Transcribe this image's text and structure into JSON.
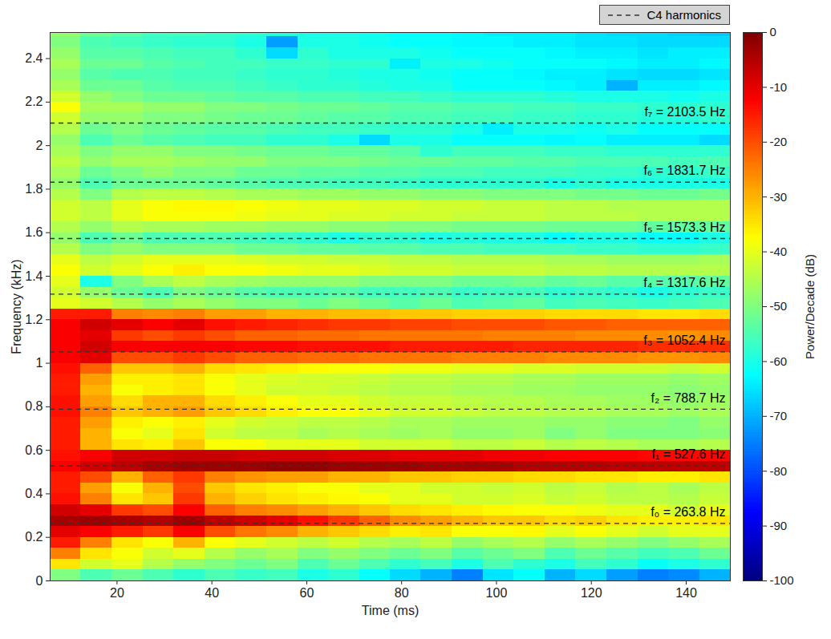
{
  "chart_data": {
    "type": "heatmap",
    "x_label": "Time (ms)",
    "y_label": "Frequency (kHz)",
    "xlim": [
      5.9,
      149.3
    ],
    "xticks": [
      20,
      40,
      60,
      80,
      100,
      120,
      140
    ],
    "ylim": [
      0,
      2.52
    ],
    "yticks": [
      0,
      0.2,
      0.4,
      0.6,
      0.8,
      1,
      1.2,
      1.4,
      1.6,
      1.8,
      2,
      2.2,
      2.4
    ],
    "grid": false,
    "legend": "top-right",
    "time_edges": [
      5.9,
      12.4,
      18.9,
      25.5,
      32.0,
      38.5,
      45.0,
      51.5,
      58.1,
      64.6,
      71.1,
      77.6,
      84.1,
      90.7,
      97.2,
      103.7,
      110.2,
      116.7,
      123.3,
      129.8,
      136.3,
      142.8,
      149.3
    ],
    "freq_edges": [
      0,
      0.05,
      0.1,
      0.15,
      0.2,
      0.25,
      0.3,
      0.35,
      0.4,
      0.45,
      0.5,
      0.55,
      0.6,
      0.65,
      0.7,
      0.75,
      0.8,
      0.85,
      0.9,
      0.95,
      1,
      1.05,
      1.1,
      1.15,
      1.2,
      1.25,
      1.3,
      1.35,
      1.4,
      1.45,
      1.5,
      1.55,
      1.6,
      1.65,
      1.7,
      1.75,
      1.8,
      1.85,
      1.9,
      1.95,
      2,
      2.05,
      2.1,
      2.15,
      2.2,
      2.25,
      2.3,
      2.35,
      2.4,
      2.45,
      2.5,
      2.55
    ],
    "cells": [
      [
        -50,
        -55,
        -52,
        -55,
        -58,
        -55,
        -57,
        -56,
        -60,
        -58,
        -62,
        -66,
        -70,
        -75,
        -65,
        -62,
        -70,
        -66,
        -72,
        -75,
        -74,
        -70
      ],
      [
        -35,
        -42,
        -40,
        -45,
        -48,
        -50,
        -52,
        -50,
        -55,
        -52,
        -55,
        -58,
        -56,
        -60,
        -55,
        -58,
        -60,
        -56,
        -58,
        -62,
        -60,
        -58
      ],
      [
        -25,
        -35,
        -38,
        -42,
        -40,
        -45,
        -48,
        -46,
        -50,
        -48,
        -50,
        -52,
        -50,
        -54,
        -52,
        -50,
        -55,
        -52,
        -54,
        -56,
        -55,
        -52
      ],
      [
        -15,
        -25,
        -35,
        -38,
        -30,
        -38,
        -40,
        -42,
        -44,
        -42,
        -45,
        -46,
        -44,
        -48,
        -46,
        -45,
        -48,
        -46,
        -48,
        -50,
        -48,
        -46
      ],
      [
        -10,
        -12,
        -15,
        -18,
        -12,
        -20,
        -24,
        -26,
        -30,
        -32,
        -34,
        -36,
        -35,
        -38,
        -38,
        -37,
        -40,
        -38,
        -40,
        -42,
        -40,
        -40
      ],
      [
        -4,
        -3,
        -4,
        -5,
        -3,
        -6,
        -8,
        -10,
        -14,
        -18,
        -22,
        -26,
        -28,
        -30,
        -32,
        -32,
        -34,
        -33,
        -35,
        -36,
        -36,
        -35
      ],
      [
        -8,
        -10,
        -18,
        -20,
        -12,
        -22,
        -25,
        -26,
        -28,
        -30,
        -32,
        -34,
        -35,
        -36,
        -37,
        -38,
        -38,
        -39,
        -40,
        -40,
        -42,
        -40
      ],
      [
        -14,
        -25,
        -35,
        -32,
        -18,
        -30,
        -33,
        -35,
        -36,
        -37,
        -38,
        -40,
        -40,
        -42,
        -42,
        -41,
        -43,
        -42,
        -44,
        -44,
        -45,
        -43
      ],
      [
        -15,
        -28,
        -38,
        -30,
        -20,
        -32,
        -35,
        -36,
        -38,
        -38,
        -40,
        -40,
        -42,
        -42,
        -43,
        -42,
        -44,
        -43,
        -45,
        -44,
        -46,
        -44
      ],
      [
        -15,
        -20,
        -30,
        -22,
        -18,
        -25,
        -27,
        -28,
        -28,
        -30,
        -30,
        -32,
        -32,
        -33,
        -33,
        -34,
        -34,
        -35,
        -35,
        -36,
        -36,
        -35
      ],
      [
        -12,
        -8,
        -6,
        -4,
        -3,
        -3,
        -3,
        -2,
        -2,
        -3,
        -3,
        -3,
        -4,
        -4,
        -4,
        -5,
        -5,
        -5,
        -6,
        -6,
        -6,
        -6
      ],
      [
        -14,
        -12,
        -8,
        -8,
        -7,
        -7,
        -8,
        -8,
        -8,
        -9,
        -9,
        -10,
        -10,
        -10,
        -11,
        -11,
        -12,
        -12,
        -12,
        -13,
        -13,
        -13
      ],
      [
        -15,
        -30,
        -35,
        -36,
        -32,
        -38,
        -38,
        -40,
        -40,
        -40,
        -42,
        -42,
        -42,
        -44,
        -44,
        -43,
        -45,
        -44,
        -45,
        -46,
        -46,
        -45
      ],
      [
        -15,
        -30,
        -38,
        -40,
        -35,
        -42,
        -44,
        -44,
        -46,
        -45,
        -46,
        -47,
        -46,
        -48,
        -48,
        -47,
        -50,
        -48,
        -50,
        -50,
        -50,
        -49
      ],
      [
        -15,
        -28,
        -36,
        -38,
        -36,
        -40,
        -42,
        -43,
        -44,
        -44,
        -45,
        -46,
        -46,
        -47,
        -47,
        -47,
        -48,
        -48,
        -49,
        -49,
        -50,
        -48
      ],
      [
        -14,
        -25,
        -32,
        -30,
        -28,
        -32,
        -34,
        -36,
        -38,
        -38,
        -40,
        -42,
        -42,
        -43,
        -44,
        -44,
        -45,
        -45,
        -46,
        -46,
        -47,
        -46
      ],
      [
        -14,
        -28,
        -34,
        -30,
        -30,
        -34,
        -36,
        -38,
        -40,
        -40,
        -42,
        -43,
        -43,
        -44,
        -45,
        -45,
        -46,
        -46,
        -47,
        -47,
        -48,
        -47
      ],
      [
        -15,
        -30,
        -38,
        -36,
        -35,
        -38,
        -40,
        -42,
        -42,
        -43,
        -44,
        -45,
        -45,
        -46,
        -46,
        -47,
        -47,
        -48,
        -48,
        -48,
        -49,
        -48
      ],
      [
        -15,
        -28,
        -36,
        -36,
        -35,
        -38,
        -40,
        -41,
        -42,
        -42,
        -43,
        -44,
        -44,
        -45,
        -45,
        -46,
        -46,
        -47,
        -47,
        -47,
        -48,
        -47
      ],
      [
        -14,
        -22,
        -32,
        -32,
        -30,
        -34,
        -35,
        -36,
        -37,
        -38,
        -38,
        -39,
        -39,
        -40,
        -40,
        -41,
        -41,
        -42,
        -42,
        -42,
        -43,
        -42
      ],
      [
        -12,
        -10,
        -20,
        -20,
        -18,
        -20,
        -22,
        -22,
        -23,
        -23,
        -24,
        -24,
        -24,
        -25,
        -25,
        -25,
        -26,
        -26,
        -26,
        -27,
        -27,
        -26
      ],
      [
        -12,
        -8,
        -12,
        -12,
        -12,
        -12,
        -13,
        -13,
        -14,
        -14,
        -14,
        -15,
        -15,
        -15,
        -15,
        -16,
        -16,
        -16,
        -16,
        -17,
        -17,
        -17
      ],
      [
        -12,
        -10,
        -18,
        -20,
        -18,
        -20,
        -22,
        -22,
        -23,
        -23,
        -24,
        -24,
        -24,
        -24,
        -25,
        -25,
        -25,
        -26,
        -26,
        -26,
        -27,
        -26
      ],
      [
        -12,
        -8,
        -10,
        -12,
        -10,
        -14,
        -15,
        -16,
        -17,
        -18,
        -18,
        -19,
        -19,
        -20,
        -20,
        -20,
        -21,
        -21,
        -22,
        -22,
        -22,
        -22
      ],
      [
        -15,
        -15,
        -25,
        -26,
        -25,
        -28,
        -28,
        -30,
        -30,
        -31,
        -31,
        -32,
        -32,
        -33,
        -33,
        -33,
        -34,
        -34,
        -34,
        -35,
        -35,
        -34
      ],
      [
        -40,
        -42,
        -45,
        -48,
        -46,
        -48,
        -50,
        -50,
        -52,
        -50,
        -52,
        -54,
        -52,
        -55,
        -54,
        -53,
        -56,
        -55,
        -56,
        -57,
        -56,
        -55
      ],
      [
        -42,
        -48,
        -52,
        -55,
        -50,
        -52,
        -54,
        -55,
        -55,
        -54,
        -56,
        -56,
        -55,
        -57,
        -56,
        -56,
        -58,
        -57,
        -58,
        -60,
        -58,
        -57
      ],
      [
        -40,
        -60,
        -50,
        -46,
        -44,
        -46,
        -47,
        -48,
        -48,
        -48,
        -50,
        -50,
        -50,
        -52,
        -52,
        -51,
        -53,
        -52,
        -54,
        -54,
        -54,
        -53
      ],
      [
        -38,
        -42,
        -40,
        -38,
        -36,
        -38,
        -38,
        -39,
        -40,
        -40,
        -41,
        -42,
        -42,
        -43,
        -43,
        -43,
        -44,
        -44,
        -45,
        -45,
        -45,
        -45
      ],
      [
        -40,
        -44,
        -42,
        -40,
        -40,
        -40,
        -41,
        -42,
        -42,
        -43,
        -43,
        -44,
        -44,
        -45,
        -45,
        -45,
        -46,
        -46,
        -47,
        -47,
        -47,
        -46
      ],
      [
        -45,
        -50,
        -48,
        -50,
        -50,
        -50,
        -52,
        -52,
        -53,
        -53,
        -54,
        -54,
        -55,
        -55,
        -56,
        -56,
        -56,
        -57,
        -57,
        -58,
        -58,
        -57
      ],
      [
        -48,
        -55,
        -52,
        -55,
        -55,
        -55,
        -56,
        -57,
        -58,
        -60,
        -58,
        -58,
        -60,
        -59,
        -60,
        -60,
        -62,
        -60,
        -60,
        -62,
        -62,
        -60
      ],
      [
        -45,
        -48,
        -45,
        -46,
        -46,
        -47,
        -47,
        -48,
        -48,
        -49,
        -49,
        -50,
        -50,
        -51,
        -51,
        -51,
        -52,
        -52,
        -52,
        -53,
        -53,
        -53
      ],
      [
        -42,
        -44,
        -40,
        -38,
        -38,
        -38,
        -39,
        -40,
        -40,
        -41,
        -41,
        -42,
        -42,
        -43,
        -43,
        -43,
        -44,
        -44,
        -44,
        -45,
        -45,
        -45
      ],
      [
        -42,
        -44,
        -40,
        -38,
        -37,
        -37,
        -38,
        -39,
        -40,
        -40,
        -41,
        -41,
        -42,
        -42,
        -43,
        -43,
        -44,
        -44,
        -45,
        -45,
        -45,
        -45
      ],
      [
        -45,
        -50,
        -45,
        -44,
        -44,
        -45,
        -46,
        -46,
        -47,
        -47,
        -48,
        -48,
        -49,
        -49,
        -50,
        -50,
        -50,
        -51,
        -51,
        -52,
        -52,
        -51
      ],
      [
        -48,
        -55,
        -52,
        -52,
        -52,
        -53,
        -54,
        -55,
        -55,
        -56,
        -56,
        -57,
        -58,
        -58,
        -58,
        -58,
        -60,
        -58,
        -60,
        -60,
        -60,
        -60
      ],
      [
        -46,
        -52,
        -50,
        -48,
        -50,
        -50,
        -52,
        -52,
        -53,
        -53,
        -54,
        -54,
        -55,
        -55,
        -56,
        -56,
        -56,
        -57,
        -57,
        -58,
        -58,
        -57
      ],
      [
        -44,
        -48,
        -46,
        -46,
        -47,
        -48,
        -48,
        -50,
        -50,
        -50,
        -51,
        -52,
        -52,
        -53,
        -53,
        -54,
        -54,
        -55,
        -55,
        -55,
        -56,
        -55
      ],
      [
        -46,
        -50,
        -48,
        -48,
        -50,
        -50,
        -51,
        -52,
        -52,
        -53,
        -53,
        -54,
        -58,
        -56,
        -56,
        -56,
        -57,
        -57,
        -58,
        -58,
        -58,
        -58
      ],
      [
        -48,
        -55,
        -52,
        -54,
        -55,
        -56,
        -56,
        -58,
        -58,
        -60,
        -66,
        -60,
        -60,
        -62,
        -62,
        -62,
        -63,
        -62,
        -64,
        -64,
        -64,
        -66
      ],
      [
        -45,
        -52,
        -50,
        -52,
        -53,
        -54,
        -54,
        -55,
        -56,
        -56,
        -57,
        -58,
        -58,
        -60,
        -64,
        -60,
        -60,
        -61,
        -60,
        -62,
        -62,
        -62
      ],
      [
        -42,
        -48,
        -48,
        -50,
        -50,
        -51,
        -52,
        -52,
        -53,
        -54,
        -54,
        -55,
        -55,
        -56,
        -56,
        -57,
        -57,
        -58,
        -58,
        -59,
        -59,
        -58
      ],
      [
        -38,
        -46,
        -46,
        -48,
        -48,
        -50,
        -50,
        -51,
        -52,
        -52,
        -53,
        -54,
        -54,
        -55,
        -55,
        -56,
        -56,
        -57,
        -57,
        -58,
        -58,
        -58
      ],
      [
        -42,
        -48,
        -50,
        -52,
        -52,
        -53,
        -54,
        -54,
        -55,
        -55,
        -56,
        -56,
        -57,
        -58,
        -58,
        -58,
        -59,
        -60,
        -60,
        -60,
        -61,
        -60
      ],
      [
        -46,
        -52,
        -52,
        -54,
        -55,
        -55,
        -56,
        -57,
        -58,
        -58,
        -59,
        -60,
        -60,
        -62,
        -62,
        -62,
        -63,
        -64,
        -70,
        -64,
        -64,
        -63
      ],
      [
        -48,
        -54,
        -55,
        -55,
        -56,
        -56,
        -57,
        -58,
        -58,
        -59,
        -60,
        -60,
        -61,
        -62,
        -62,
        -63,
        -64,
        -64,
        -65,
        -66,
        -66,
        -65
      ],
      [
        -46,
        -52,
        -52,
        -54,
        -55,
        -56,
        -56,
        -57,
        -57,
        -58,
        -58,
        -64,
        -60,
        -60,
        -61,
        -62,
        -62,
        -62,
        -63,
        -64,
        -64,
        -63
      ],
      [
        -48,
        -54,
        -54,
        -55,
        -56,
        -56,
        -58,
        -66,
        -58,
        -60,
        -60,
        -60,
        -61,
        -62,
        -62,
        -62,
        -63,
        -64,
        -64,
        -65,
        -64,
        -64
      ],
      [
        -50,
        -55,
        -56,
        -57,
        -58,
        -58,
        -60,
        -72,
        -60,
        -60,
        -61,
        -62,
        -62,
        -63,
        -63,
        -64,
        -64,
        -65,
        -65,
        -66,
        -66,
        -66
      ],
      [
        -48,
        -52,
        -54,
        -56,
        -56,
        -57,
        -58,
        -59,
        -60,
        -60,
        -61,
        -62,
        -62,
        -63,
        -64,
        -64,
        -64,
        -65,
        -66,
        -66,
        -67,
        -68
      ]
    ],
    "colorbar": {
      "label": "Power/Decade (dB)",
      "range": [
        -100,
        0
      ],
      "ticks": [
        0,
        -10,
        -20,
        -30,
        -40,
        -50,
        -60,
        -70,
        -80,
        -90,
        -100
      ],
      "color": "jet"
    },
    "series": [
      {
        "name": "C4 harmonics",
        "type": "line",
        "line_style": "dashed",
        "color": "#333333",
        "values": [
          0.2638,
          0.5276,
          0.7887,
          1.0524,
          1.3176,
          1.5733,
          1.8317,
          2.1035
        ],
        "value_labels": [
          "f₀ = 263.8 Hz",
          "f₁ = 527.6 Hz",
          "f₂ = 788.7 Hz",
          "f₃ = 1052.4 Hz",
          "f₄ = 1317.6 Hz",
          "f₅ = 1573.3 Hz",
          "f₆ = 1831.7 Hz",
          "f₇ = 2103.5 Hz"
        ]
      }
    ]
  }
}
